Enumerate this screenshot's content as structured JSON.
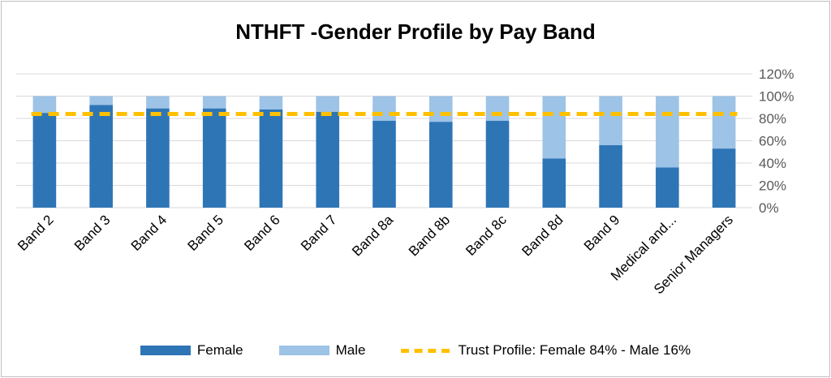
{
  "chart_data": {
    "type": "bar",
    "stacked": true,
    "title": "NTHFT -Gender Profile by Pay Band",
    "categories": [
      "Band 2",
      "Band 3",
      "Band 4",
      "Band 5",
      "Band 6",
      "Band 7",
      "Band 8a",
      "Band 8b",
      "Band 8c",
      "Band 8d",
      "Band 9",
      "Medical and...",
      "Senior Managers"
    ],
    "series": [
      {
        "name": "Female",
        "color": "#2e75b6",
        "values": [
          85,
          92,
          89,
          89,
          88,
          86,
          78,
          77,
          78,
          44,
          56,
          36,
          53
        ]
      },
      {
        "name": "Male",
        "color": "#9dc3e6",
        "values": [
          15,
          8,
          11,
          11,
          12,
          14,
          22,
          23,
          22,
          56,
          44,
          64,
          47
        ]
      }
    ],
    "reference_line": {
      "name": "Trust Profile: Female 84% - Male 16%",
      "value": 84,
      "color": "#ffc000",
      "style": "dashed"
    },
    "y_axis": {
      "position": "right",
      "min": 0,
      "max": 120,
      "step": 20,
      "tick_labels": [
        "0%",
        "20%",
        "40%",
        "60%",
        "80%",
        "100%",
        "120%"
      ]
    },
    "grid": true,
    "legend_position": "bottom"
  }
}
